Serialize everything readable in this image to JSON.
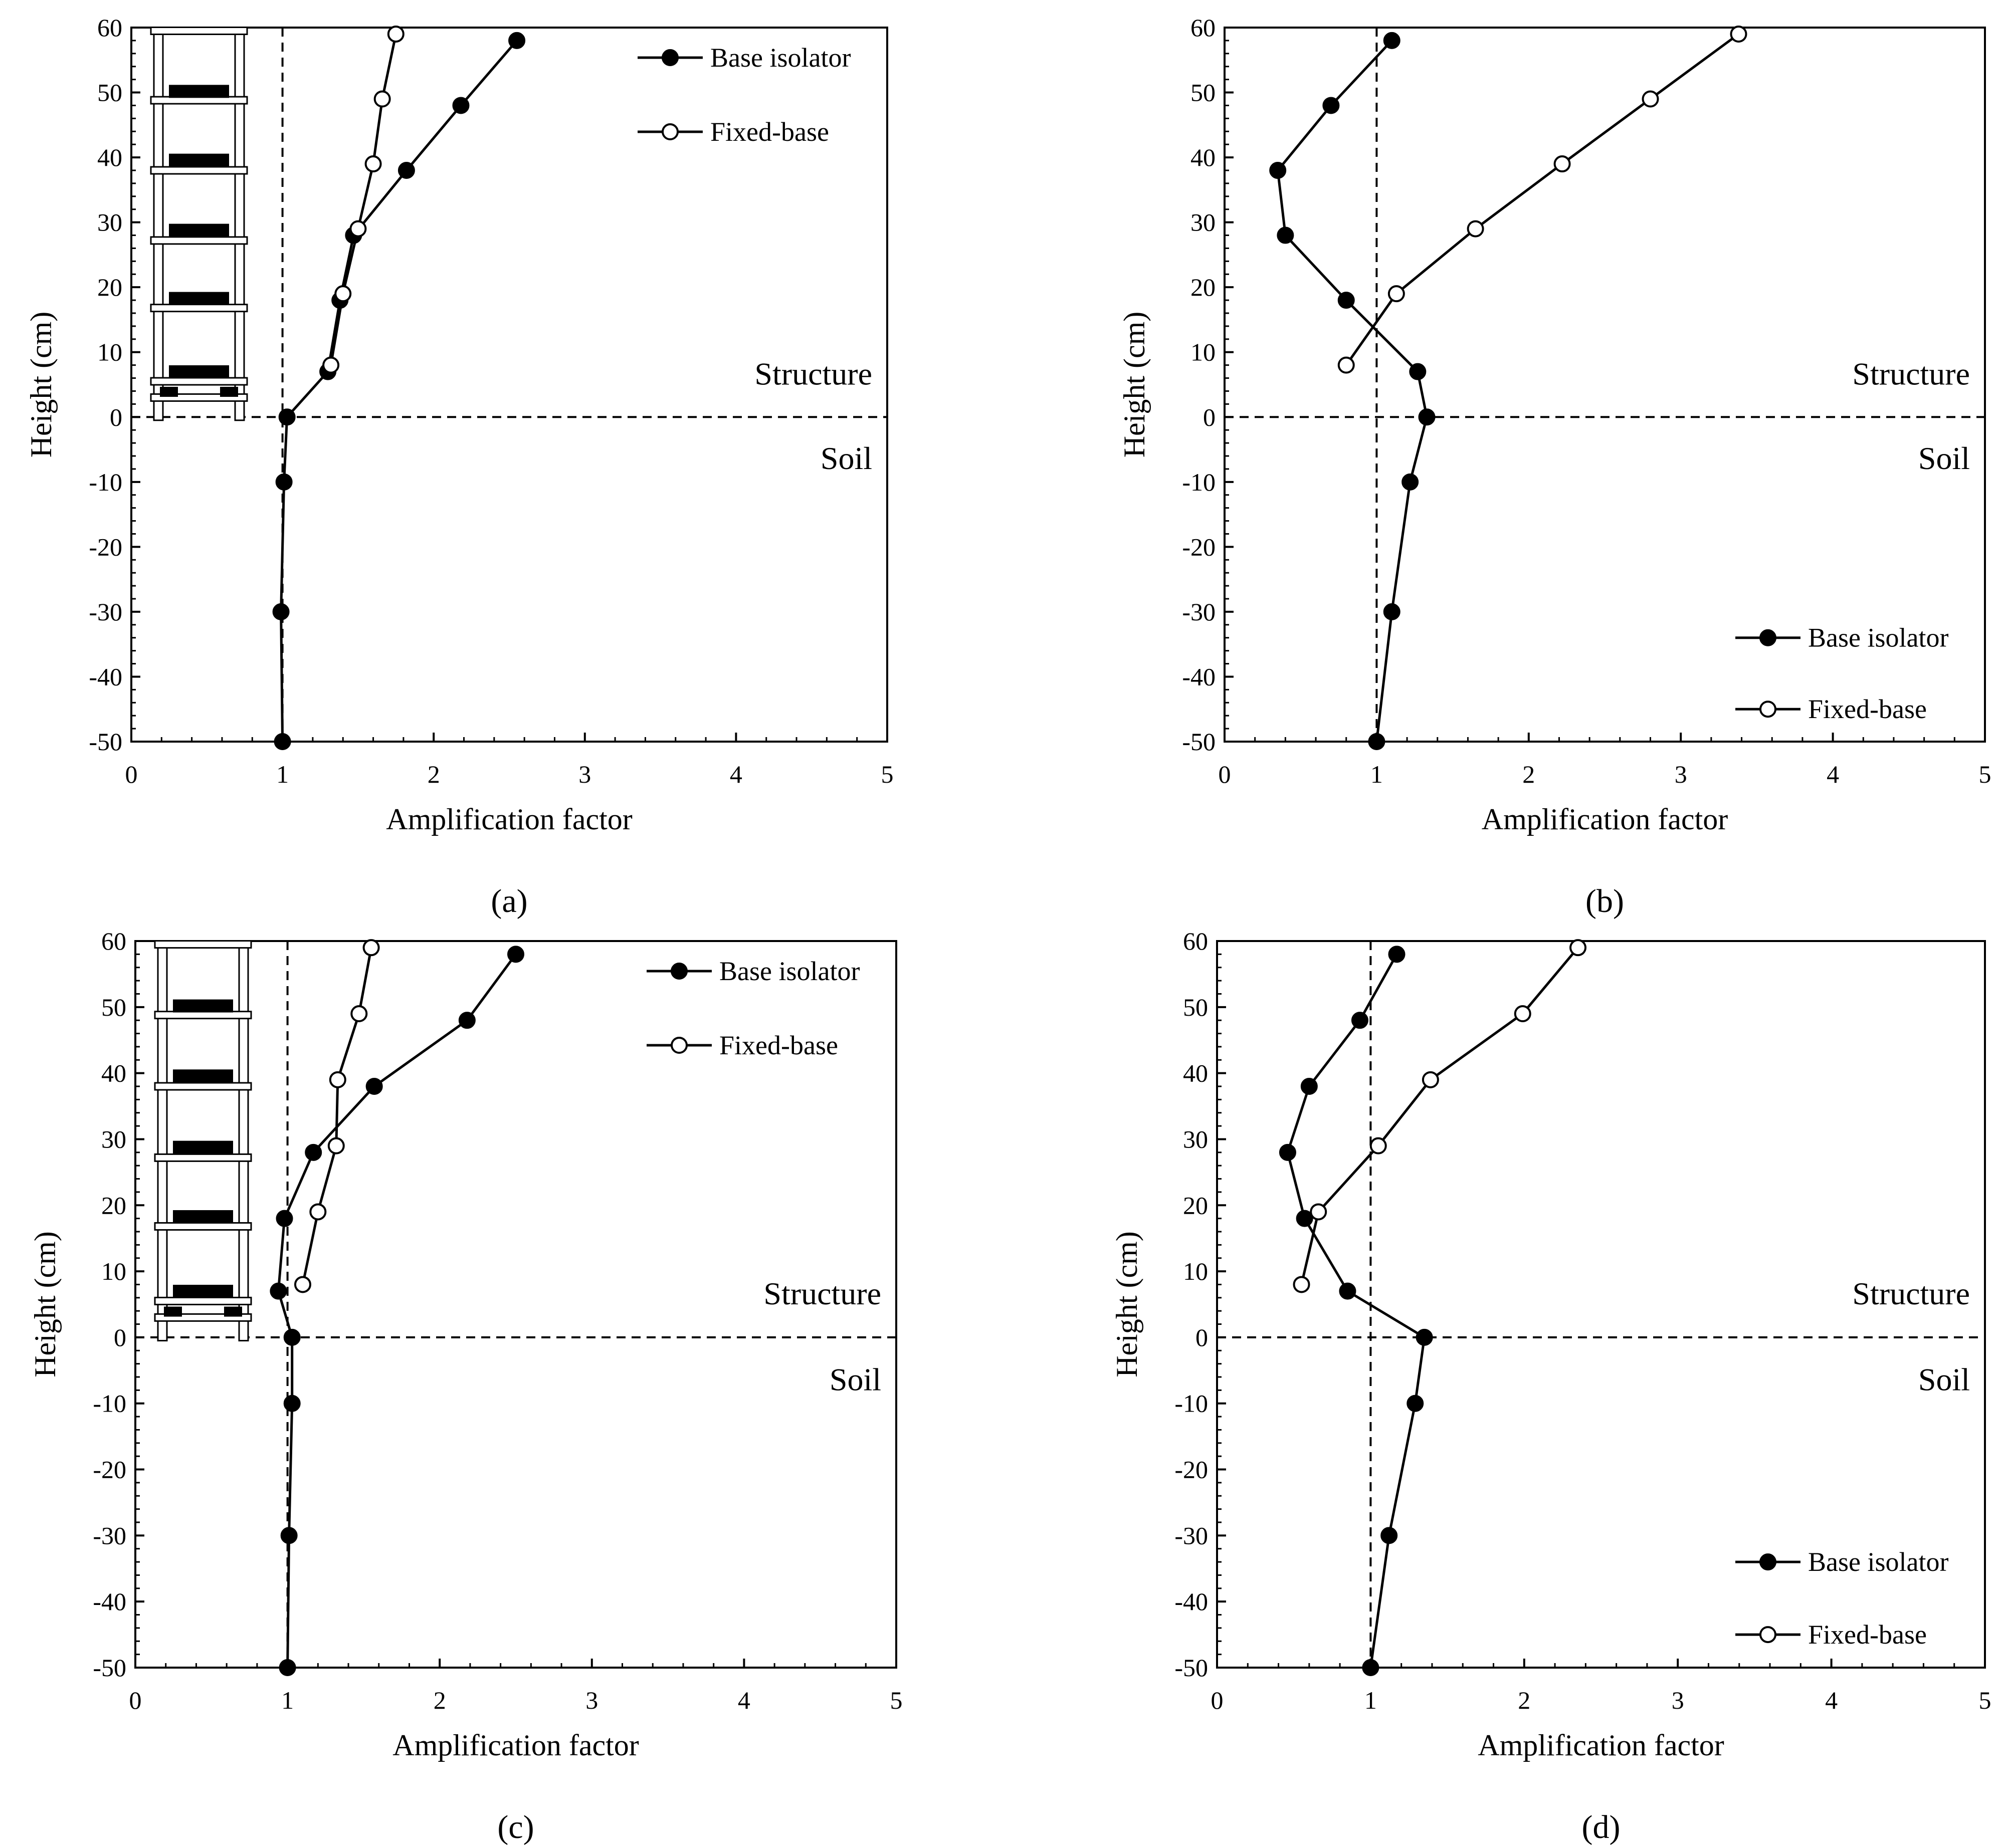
{
  "chart_data": [
    {
      "type": "line",
      "caption": "(a)",
      "xlabel": "Amplification factor",
      "ylabel": "Height (cm)",
      "xlim": [
        0,
        5
      ],
      "ylim": [
        -50,
        60
      ],
      "xticks": [
        "0",
        "1",
        "2",
        "3",
        "4",
        "5"
      ],
      "yticks": [
        "60",
        "50",
        "40",
        "30",
        "20",
        "10",
        "0",
        "-10",
        "-20",
        "-30",
        "-40",
        "-50"
      ],
      "reference_lines": {
        "vertical_x": 1,
        "horizontal_y": 0
      },
      "region_labels": {
        "upper": "Structure",
        "lower": "Soil"
      },
      "legend_position": "top-right",
      "has_building_sketch": true,
      "series": [
        {
          "name": "Base isolator",
          "marker": "filled-circle",
          "points": [
            [
              2.55,
              58
            ],
            [
              2.18,
              48
            ],
            [
              1.82,
              38
            ],
            [
              1.47,
              28
            ],
            [
              1.38,
              18
            ],
            [
              1.3,
              7
            ],
            [
              1.03,
              0
            ],
            [
              1.01,
              -10
            ],
            [
              0.99,
              -30
            ],
            [
              1.0,
              -50
            ]
          ]
        },
        {
          "name": "Fixed-base",
          "marker": "open-circle",
          "points": [
            [
              1.75,
              59
            ],
            [
              1.66,
              49
            ],
            [
              1.6,
              39
            ],
            [
              1.5,
              29
            ],
            [
              1.4,
              19
            ],
            [
              1.32,
              8
            ]
          ]
        }
      ]
    },
    {
      "type": "line",
      "caption": "(b)",
      "xlabel": "Amplification factor",
      "ylabel": "Height (cm)",
      "xlim": [
        0,
        5
      ],
      "ylim": [
        -50,
        60
      ],
      "xticks": [
        "0",
        "1",
        "2",
        "3",
        "4",
        "5"
      ],
      "yticks": [
        "60",
        "50",
        "40",
        "30",
        "20",
        "10",
        "0",
        "-10",
        "-20",
        "-30",
        "-40",
        "-50"
      ],
      "reference_lines": {
        "vertical_x": 1,
        "horizontal_y": 0
      },
      "region_labels": {
        "upper": "Structure",
        "lower": "Soil"
      },
      "legend_position": "bottom-right",
      "has_building_sketch": false,
      "series": [
        {
          "name": "Base isolator",
          "marker": "filled-circle",
          "points": [
            [
              1.1,
              58
            ],
            [
              0.7,
              48
            ],
            [
              0.35,
              38
            ],
            [
              0.4,
              28
            ],
            [
              0.8,
              18
            ],
            [
              1.27,
              7
            ],
            [
              1.33,
              0
            ],
            [
              1.22,
              -10
            ],
            [
              1.1,
              -30
            ],
            [
              1.0,
              -50
            ]
          ]
        },
        {
          "name": "Fixed-base",
          "marker": "open-circle",
          "points": [
            [
              3.38,
              59
            ],
            [
              2.8,
              49
            ],
            [
              2.22,
              39
            ],
            [
              1.65,
              29
            ],
            [
              1.13,
              19
            ],
            [
              0.8,
              8
            ]
          ]
        }
      ]
    },
    {
      "type": "line",
      "caption": "(c)",
      "xlabel": "Amplification factor",
      "ylabel": "Height (cm)",
      "xlim": [
        0,
        5
      ],
      "ylim": [
        -50,
        60
      ],
      "xticks": [
        "0",
        "1",
        "2",
        "3",
        "4",
        "5"
      ],
      "yticks": [
        "60",
        "50",
        "40",
        "30",
        "20",
        "10",
        "0",
        "-10",
        "-20",
        "-30",
        "-40",
        "-50"
      ],
      "reference_lines": {
        "vertical_x": 1,
        "horizontal_y": 0
      },
      "region_labels": {
        "upper": "Structure",
        "lower": "Soil"
      },
      "legend_position": "top-right",
      "has_building_sketch": true,
      "series": [
        {
          "name": "Base isolator",
          "marker": "filled-circle",
          "points": [
            [
              2.5,
              58
            ],
            [
              2.18,
              48
            ],
            [
              1.57,
              38
            ],
            [
              1.17,
              28
            ],
            [
              0.98,
              18
            ],
            [
              0.94,
              7
            ],
            [
              1.03,
              0
            ],
            [
              1.03,
              -10
            ],
            [
              1.01,
              -30
            ],
            [
              1.0,
              -50
            ]
          ]
        },
        {
          "name": "Fixed-base",
          "marker": "open-circle",
          "points": [
            [
              1.55,
              59
            ],
            [
              1.47,
              49
            ],
            [
              1.33,
              39
            ],
            [
              1.32,
              29
            ],
            [
              1.2,
              19
            ],
            [
              1.1,
              8
            ]
          ]
        }
      ]
    },
    {
      "type": "line",
      "caption": "(d)",
      "xlabel": "Amplification factor",
      "ylabel": "Height (cm)",
      "xlim": [
        0,
        5
      ],
      "ylim": [
        -50,
        60
      ],
      "xticks": [
        "0",
        "1",
        "2",
        "3",
        "4",
        "5"
      ],
      "yticks": [
        "60",
        "50",
        "40",
        "30",
        "20",
        "10",
        "0",
        "-10",
        "-20",
        "-30",
        "-40",
        "-50"
      ],
      "reference_lines": {
        "vertical_x": 1,
        "horizontal_y": 0
      },
      "region_labels": {
        "upper": "Structure",
        "lower": "Soil"
      },
      "legend_position": "bottom-right",
      "has_building_sketch": false,
      "series": [
        {
          "name": "Base isolator",
          "marker": "filled-circle",
          "points": [
            [
              1.17,
              58
            ],
            [
              0.93,
              48
            ],
            [
              0.6,
              38
            ],
            [
              0.46,
              28
            ],
            [
              0.57,
              18
            ],
            [
              0.85,
              7
            ],
            [
              1.35,
              0
            ],
            [
              1.29,
              -10
            ],
            [
              1.12,
              -30
            ],
            [
              1.0,
              -50
            ]
          ]
        },
        {
          "name": "Fixed-base",
          "marker": "open-circle",
          "points": [
            [
              2.35,
              59
            ],
            [
              1.99,
              49
            ],
            [
              1.39,
              39
            ],
            [
              1.05,
              29
            ],
            [
              0.66,
              19
            ],
            [
              0.55,
              8
            ]
          ]
        }
      ]
    }
  ]
}
